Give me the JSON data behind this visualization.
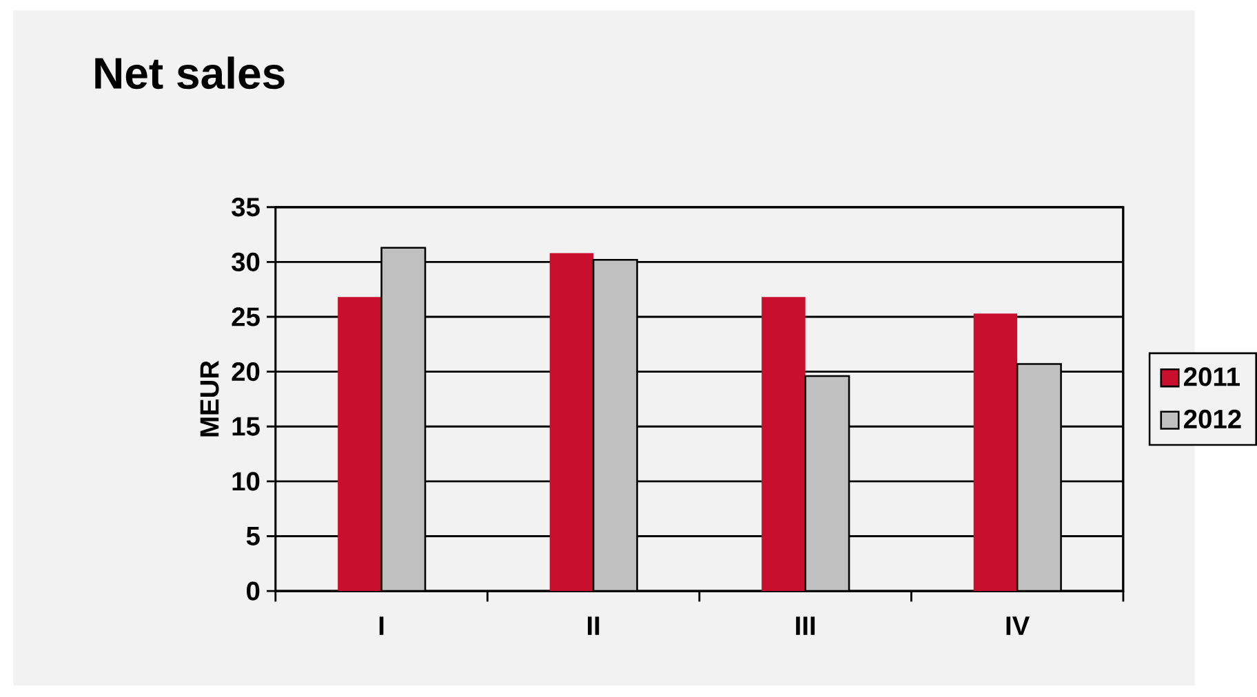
{
  "chart_data": {
    "type": "bar",
    "title": "Net sales",
    "ylabel": "MEUR",
    "categories": [
      "I",
      "II",
      "III",
      "IV"
    ],
    "series": [
      {
        "name": "2011",
        "color": "#c8102e",
        "values": [
          26.8,
          30.8,
          26.8,
          25.3
        ]
      },
      {
        "name": "2012",
        "color": "#c0c0c0",
        "values": [
          31.3,
          30.2,
          19.6,
          20.7
        ]
      }
    ],
    "ylim": [
      0,
      35
    ],
    "yticks": [
      0,
      5,
      10,
      15,
      20,
      25,
      30,
      35
    ],
    "grid": "y",
    "legend": "right"
  }
}
